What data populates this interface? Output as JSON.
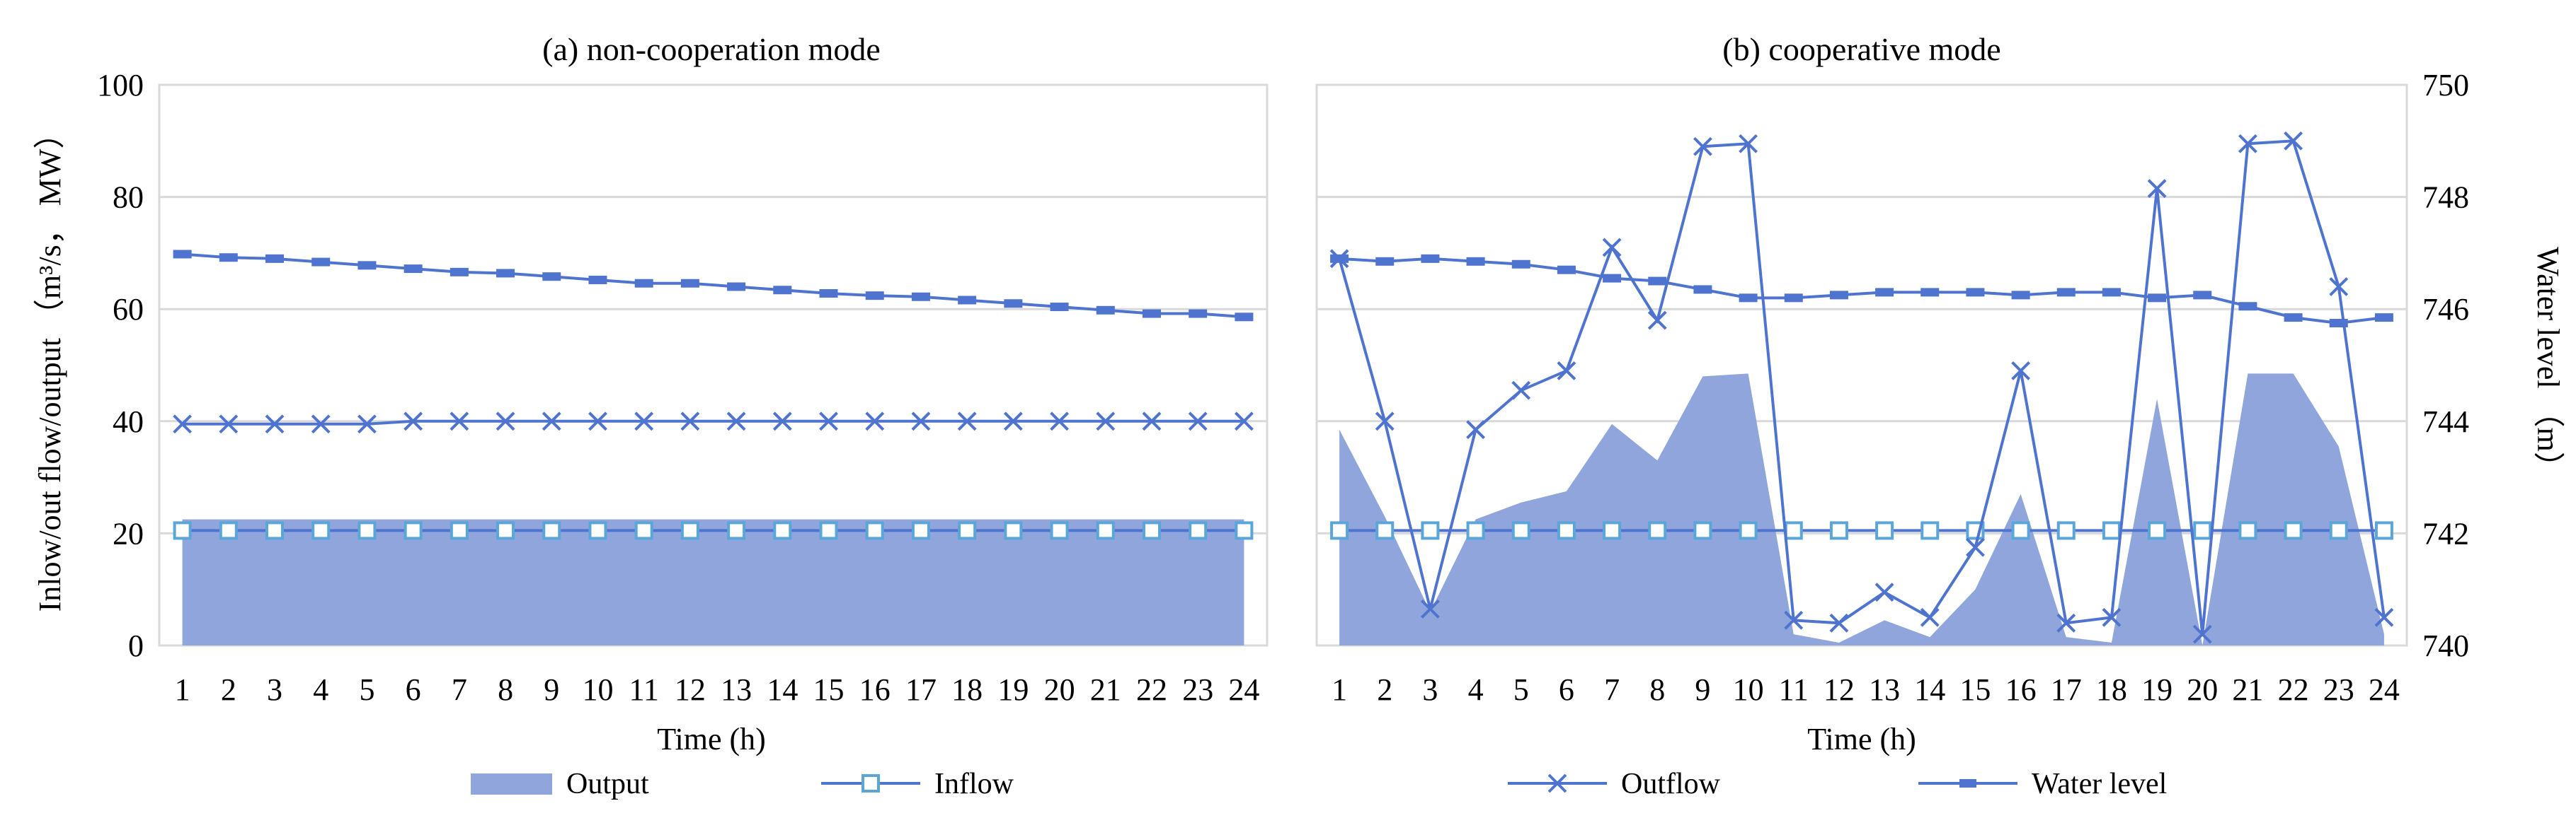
{
  "figure": {
    "panel_a_title": "(a) non-cooperation mode",
    "panel_b_title": "(b) cooperative mode",
    "left_ylabel": "Inlow/out flow/output （m³/s， MW）",
    "right_ylabel": "Water level （m）",
    "xlabel": "Time (h)"
  },
  "legend": {
    "output": "Output",
    "inflow": "Inflow",
    "outflow": "Outflow",
    "water_level": "Water level"
  },
  "colors": {
    "area": "#8fa5dc",
    "line": "#4f74cf",
    "inflow_marker_fill": "#ffffff",
    "inflow_marker_stroke": "#5aa6d8",
    "grid": "#d9d9d9"
  },
  "chart_data": [
    {
      "type": "line",
      "title": "(a) non-cooperation mode",
      "xlabel": "Time (h)",
      "ylabel": "Inlow/out flow/output （m³/s， MW）",
      "x": [
        1,
        2,
        3,
        4,
        5,
        6,
        7,
        8,
        9,
        10,
        11,
        12,
        13,
        14,
        15,
        16,
        17,
        18,
        19,
        20,
        21,
        22,
        23,
        24
      ],
      "ylim": [
        0,
        100
      ],
      "yticks": [
        0,
        20,
        40,
        60,
        80,
        100
      ],
      "grid": "horizontal",
      "series": [
        {
          "name": "Output",
          "kind": "area",
          "axis": "left",
          "values": [
            22.5,
            22.5,
            22.5,
            22.5,
            22.5,
            22.5,
            22.5,
            22.5,
            22.5,
            22.5,
            22.5,
            22.5,
            22.5,
            22.5,
            22.5,
            22.5,
            22.5,
            22.5,
            22.5,
            22.5,
            22.5,
            22.5,
            22.5,
            22.5
          ]
        },
        {
          "name": "Inflow",
          "kind": "line",
          "marker": "square",
          "axis": "left",
          "values": [
            20.5,
            20.5,
            20.5,
            20.5,
            20.5,
            20.5,
            20.5,
            20.5,
            20.5,
            20.5,
            20.5,
            20.5,
            20.5,
            20.5,
            20.5,
            20.5,
            20.5,
            20.5,
            20.5,
            20.5,
            20.5,
            20.5,
            20.5,
            20.5
          ]
        },
        {
          "name": "Outflow",
          "kind": "line",
          "marker": "x",
          "axis": "left",
          "values": [
            39.5,
            39.5,
            39.5,
            39.5,
            39.5,
            40,
            40,
            40,
            40,
            40,
            40,
            40,
            40,
            40,
            40,
            40,
            40,
            40,
            40,
            40,
            40,
            40,
            40,
            40
          ]
        },
        {
          "name": "Water level",
          "kind": "line",
          "marker": "dash",
          "axis": "left",
          "values": [
            69.8,
            69.2,
            69.0,
            68.4,
            67.8,
            67.2,
            66.6,
            66.4,
            65.8,
            65.2,
            64.6,
            64.6,
            64.0,
            63.4,
            62.8,
            62.4,
            62.2,
            61.6,
            61.0,
            60.4,
            59.8,
            59.2,
            59.2,
            58.6
          ]
        }
      ]
    },
    {
      "type": "line",
      "title": "(b) cooperative mode",
      "xlabel": "Time (h)",
      "ylabel": "Water level （m）",
      "x": [
        1,
        2,
        3,
        4,
        5,
        6,
        7,
        8,
        9,
        10,
        11,
        12,
        13,
        14,
        15,
        16,
        17,
        18,
        19,
        20,
        21,
        22,
        23,
        24
      ],
      "ylim": [
        0,
        100
      ],
      "y2lim": [
        740,
        750
      ],
      "y2ticks": [
        740,
        742,
        744,
        746,
        748,
        750
      ],
      "grid": "horizontal",
      "series": [
        {
          "name": "Output",
          "kind": "area",
          "axis": "left",
          "values": [
            38.5,
            23,
            6,
            22.5,
            25.5,
            27.5,
            39.5,
            33,
            48,
            48.5,
            2,
            0.5,
            4.5,
            1.5,
            10,
            27,
            1.5,
            0.5,
            44,
            0,
            48.5,
            48.5,
            35.5,
            2
          ]
        },
        {
          "name": "Inflow",
          "kind": "line",
          "marker": "square",
          "axis": "left",
          "values": [
            20.5,
            20.5,
            20.5,
            20.5,
            20.5,
            20.5,
            20.5,
            20.5,
            20.5,
            20.5,
            20.5,
            20.5,
            20.5,
            20.5,
            20.5,
            20.5,
            20.5,
            20.5,
            20.5,
            20.5,
            20.5,
            20.5,
            20.5,
            20.5
          ]
        },
        {
          "name": "Outflow",
          "kind": "line",
          "marker": "x",
          "axis": "left",
          "values": [
            69,
            40,
            6.5,
            38.5,
            45.5,
            49,
            71,
            58,
            89,
            89.5,
            4.5,
            4,
            9.5,
            5,
            17.5,
            49,
            4,
            5,
            81.5,
            2,
            89.5,
            90,
            64,
            5
          ]
        },
        {
          "name": "Water level",
          "kind": "line",
          "marker": "dash",
          "axis": "right",
          "values": [
            746.9,
            746.85,
            746.9,
            746.85,
            746.8,
            746.7,
            746.55,
            746.5,
            746.35,
            746.2,
            746.2,
            746.25,
            746.3,
            746.3,
            746.3,
            746.25,
            746.3,
            746.3,
            746.2,
            746.25,
            746.05,
            745.85,
            745.75,
            745.85
          ]
        }
      ]
    }
  ]
}
